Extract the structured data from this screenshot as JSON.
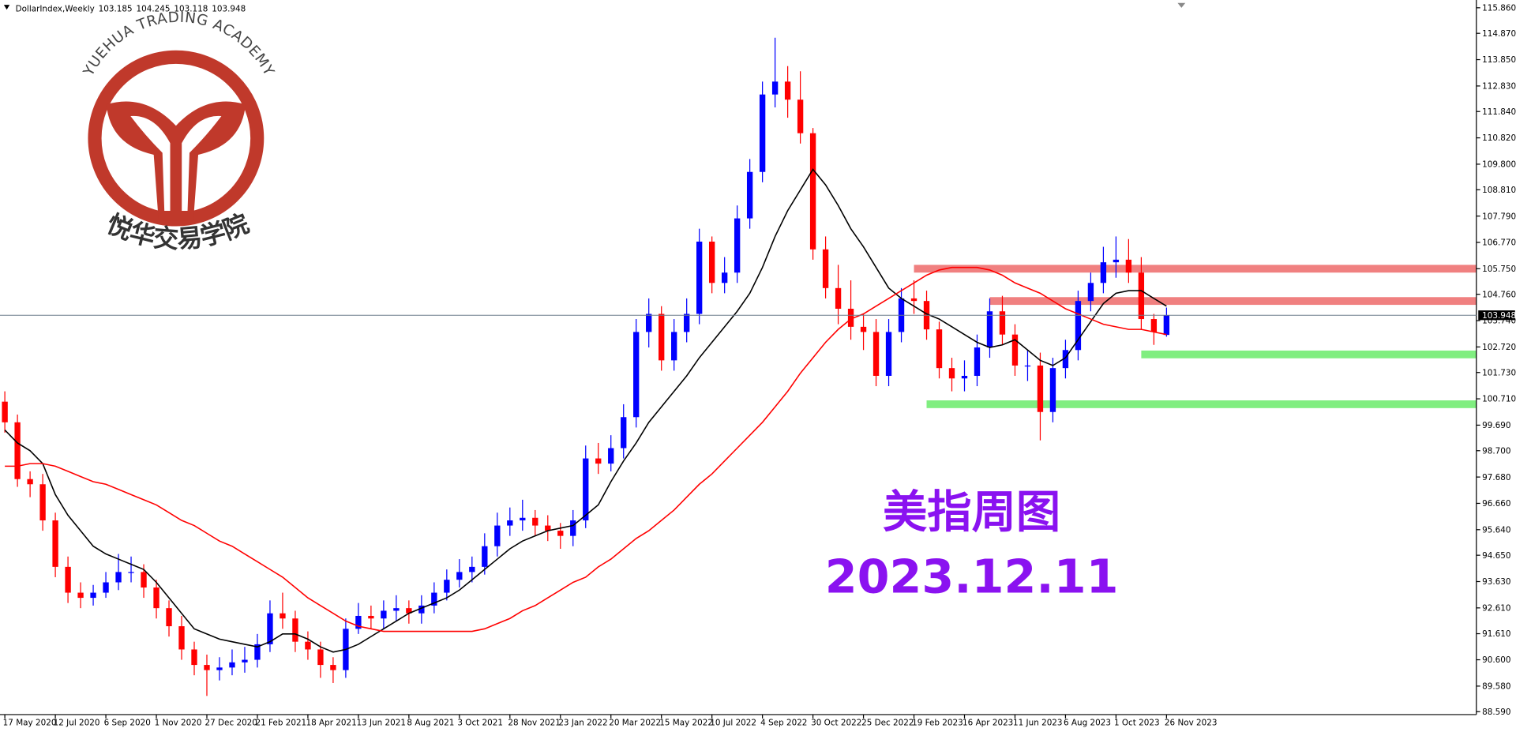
{
  "logo": {
    "arc_text": "YUEHUA TRADING ACADEMY",
    "cn_text": "悦华交易学院"
  },
  "chart_data": {
    "type": "candlestick",
    "symbol": "DollarIndex,Weekly",
    "categories": [
      "17 May 2020",
      null,
      null,
      null,
      "12 Jul 2020",
      null,
      null,
      null,
      "6 Sep 2020",
      null,
      null,
      null,
      "1 Nov 2020",
      null,
      null,
      null,
      "27 Dec 2020",
      null,
      null,
      null,
      "21 Feb 2021",
      null,
      null,
      null,
      "18 Apr 2021",
      null,
      null,
      null,
      "13 Jun 2021",
      null,
      null,
      null,
      "8 Aug 2021",
      null,
      null,
      null,
      "3 Oct 2021",
      null,
      null,
      null,
      "28 Nov 2021",
      null,
      null,
      null,
      "23 Jan 2022",
      null,
      null,
      null,
      "20 Mar 2022",
      null,
      null,
      null,
      "15 May 2022",
      null,
      null,
      null,
      "10 Jul 2022",
      null,
      null,
      null,
      "4 Sep 2022",
      null,
      null,
      null,
      "30 Oct 2022",
      null,
      null,
      null,
      "25 Dec 2022",
      null,
      null,
      null,
      "19 Feb 2023",
      null,
      null,
      null,
      "16 Apr 2023",
      null,
      null,
      null,
      "11 Jun 2023",
      null,
      null,
      null,
      "6 Aug 2023",
      null,
      null,
      null,
      "1 Oct 2023",
      null,
      null,
      null,
      "26 Nov 2023"
    ],
    "open": [
      100.6,
      99.8,
      97.6,
      97.4,
      96.0,
      94.2,
      93.2,
      93.0,
      93.2,
      93.6,
      94.0,
      94.0,
      93.4,
      92.6,
      91.9,
      91.0,
      90.4,
      90.2,
      90.3,
      90.5,
      90.6,
      91.2,
      92.4,
      92.2,
      91.3,
      91.0,
      90.4,
      90.2,
      91.8,
      92.3,
      92.2,
      92.5,
      92.6,
      92.4,
      92.7,
      93.2,
      93.7,
      94.0,
      94.2,
      95.0,
      95.8,
      96.0,
      96.1,
      95.8,
      95.6,
      95.4,
      96.0,
      98.4,
      98.2,
      98.8,
      100.0,
      103.3,
      104.0,
      102.2,
      103.3,
      104.0,
      106.8,
      105.2,
      105.6,
      107.7,
      109.5,
      112.5,
      113.0,
      112.3,
      111.0,
      106.5,
      105.0,
      104.2,
      103.5,
      103.3,
      101.6,
      103.3,
      104.6,
      104.5,
      103.4,
      101.9,
      101.5,
      101.6,
      102.7,
      104.1,
      103.2,
      102.0,
      102.0,
      100.2,
      101.9,
      102.6,
      104.5,
      105.2,
      106.0,
      106.1,
      105.6,
      103.8,
      103.185
    ],
    "high": [
      101.0,
      100.1,
      97.9,
      97.8,
      96.3,
      94.6,
      93.6,
      93.5,
      94.0,
      94.7,
      94.6,
      94.3,
      93.7,
      92.9,
      92.3,
      91.3,
      90.8,
      90.7,
      91.0,
      91.1,
      91.6,
      92.9,
      93.2,
      92.5,
      91.7,
      91.3,
      90.7,
      92.2,
      92.8,
      92.7,
      92.9,
      93.1,
      92.9,
      93.1,
      93.6,
      94.1,
      94.5,
      94.6,
      95.5,
      96.3,
      96.5,
      96.8,
      96.4,
      96.2,
      95.9,
      96.4,
      98.9,
      99.0,
      99.3,
      100.5,
      103.8,
      104.6,
      104.3,
      103.8,
      104.6,
      107.3,
      107.0,
      106.2,
      108.2,
      110.0,
      113.0,
      114.7,
      113.6,
      113.4,
      111.2,
      107.0,
      105.9,
      105.3,
      104.0,
      103.8,
      103.8,
      105.0,
      105.3,
      104.9,
      103.7,
      102.3,
      102.2,
      103.2,
      104.6,
      104.7,
      103.6,
      102.6,
      102.5,
      102.3,
      103.0,
      104.9,
      105.6,
      106.6,
      107.0,
      106.9,
      106.2,
      104.0,
      104.245
    ],
    "low": [
      99.4,
      97.3,
      96.9,
      95.6,
      93.8,
      92.8,
      92.6,
      92.7,
      93.0,
      93.3,
      93.6,
      93.0,
      92.2,
      91.5,
      90.6,
      90.0,
      89.2,
      89.8,
      90.0,
      90.1,
      90.3,
      90.9,
      91.8,
      90.9,
      90.6,
      89.9,
      89.7,
      89.9,
      91.6,
      91.8,
      91.8,
      92.1,
      92.0,
      92.0,
      92.4,
      92.9,
      93.4,
      93.6,
      93.9,
      94.6,
      95.4,
      95.6,
      95.4,
      95.2,
      94.9,
      95.0,
      95.7,
      97.8,
      97.9,
      98.4,
      99.6,
      102.7,
      101.8,
      101.8,
      102.9,
      103.6,
      104.8,
      104.8,
      105.2,
      107.3,
      109.1,
      112.0,
      111.6,
      110.6,
      106.1,
      104.6,
      103.6,
      103.0,
      102.6,
      101.2,
      101.2,
      102.9,
      104.0,
      103.0,
      101.5,
      101.0,
      101.0,
      101.2,
      102.3,
      102.8,
      101.6,
      101.4,
      99.1,
      99.8,
      101.5,
      102.2,
      104.1,
      104.8,
      105.4,
      105.2,
      103.4,
      102.8,
      103.118
    ],
    "close": [
      99.8,
      97.6,
      97.4,
      96.0,
      94.2,
      93.2,
      93.0,
      93.2,
      93.6,
      94.0,
      94.0,
      93.4,
      92.6,
      91.9,
      91.0,
      90.4,
      90.2,
      90.3,
      90.5,
      90.6,
      91.2,
      92.4,
      92.2,
      91.3,
      91.0,
      90.4,
      90.2,
      91.8,
      92.3,
      92.2,
      92.5,
      92.6,
      92.4,
      92.7,
      93.2,
      93.7,
      94.0,
      94.2,
      95.0,
      95.8,
      96.0,
      96.1,
      95.8,
      95.6,
      95.4,
      96.0,
      98.4,
      98.2,
      98.8,
      100.0,
      103.3,
      104.0,
      102.2,
      103.3,
      104.0,
      106.8,
      105.2,
      105.6,
      107.7,
      109.5,
      112.5,
      113.0,
      112.3,
      111.0,
      106.5,
      105.0,
      104.2,
      103.5,
      103.3,
      101.6,
      103.3,
      104.6,
      104.5,
      103.4,
      101.9,
      101.5,
      101.6,
      102.7,
      104.1,
      103.2,
      102.0,
      102.0,
      100.2,
      101.9,
      102.6,
      104.5,
      105.2,
      106.0,
      106.1,
      105.6,
      103.8,
      103.3,
      103.948
    ],
    "up_color": "#0000ff",
    "down_color": "#ff0000",
    "series": [
      {
        "color": "#000000",
        "values": [
          99.5,
          99.0,
          98.7,
          98.2,
          97.0,
          96.2,
          95.6,
          95.0,
          94.7,
          94.5,
          94.3,
          94.1,
          93.6,
          93.0,
          92.4,
          91.8,
          91.6,
          91.4,
          91.3,
          91.2,
          91.1,
          91.3,
          91.6,
          91.6,
          91.4,
          91.1,
          90.9,
          91.0,
          91.2,
          91.5,
          91.8,
          92.1,
          92.4,
          92.6,
          92.8,
          93.0,
          93.3,
          93.7,
          94.1,
          94.5,
          94.9,
          95.2,
          95.4,
          95.6,
          95.7,
          95.8,
          96.2,
          96.6,
          97.5,
          98.3,
          99.0,
          99.8,
          100.4,
          101.0,
          101.6,
          102.3,
          102.9,
          103.5,
          104.1,
          104.8,
          105.8,
          107.0,
          108.0,
          108.8,
          109.6,
          109.0,
          108.2,
          107.3,
          106.6,
          105.8,
          105.0,
          104.6,
          104.3,
          104.0,
          103.8,
          103.5,
          103.2,
          102.9,
          102.7,
          102.8,
          103.0,
          102.6,
          102.2,
          102.0,
          102.3,
          103.0,
          103.7,
          104.4,
          104.8,
          104.9,
          104.9,
          104.6,
          104.3
        ]
      },
      {
        "color": "#ff0000",
        "values": [
          98.1,
          98.1,
          98.2,
          98.2,
          98.1,
          97.9,
          97.7,
          97.5,
          97.4,
          97.2,
          97.0,
          96.8,
          96.6,
          96.3,
          96.0,
          95.8,
          95.5,
          95.2,
          95.0,
          94.7,
          94.4,
          94.1,
          93.8,
          93.4,
          93.0,
          92.7,
          92.4,
          92.1,
          91.9,
          91.8,
          91.7,
          91.7,
          91.7,
          91.7,
          91.7,
          91.7,
          91.7,
          91.7,
          91.8,
          92.0,
          92.2,
          92.5,
          92.7,
          93.0,
          93.3,
          93.6,
          93.8,
          94.2,
          94.5,
          94.9,
          95.3,
          95.6,
          96.0,
          96.4,
          96.9,
          97.4,
          97.8,
          98.3,
          98.8,
          99.3,
          99.8,
          100.4,
          101.0,
          101.7,
          102.3,
          102.9,
          103.4,
          103.8,
          104.0,
          104.3,
          104.6,
          104.9,
          105.2,
          105.5,
          105.7,
          105.8,
          105.8,
          105.8,
          105.7,
          105.5,
          105.2,
          105.0,
          104.8,
          104.5,
          104.2,
          104.0,
          103.8,
          103.6,
          103.5,
          103.4,
          103.4,
          103.3,
          103.2
        ]
      }
    ],
    "bands": [
      {
        "value": 105.75,
        "from": 72,
        "color": "#f08080"
      },
      {
        "value": 104.5,
        "from": 78,
        "color": "#f08080"
      },
      {
        "value": 102.43,
        "from": 90,
        "color": "#80ee80"
      },
      {
        "value": 100.5,
        "from": 73,
        "color": "#80ee80"
      }
    ],
    "annotations": [
      {
        "text": "美指周图",
        "color": "#8a12f0"
      },
      {
        "text": "2023.12.11",
        "color": "#8a12f0"
      }
    ],
    "ylim": [
      88.29,
      116.16
    ],
    "yticks": [
      {
        "value": 115.86,
        "label": "115.860"
      },
      {
        "value": 114.87,
        "label": "114.870"
      },
      {
        "value": 113.85,
        "label": "113.850"
      },
      {
        "value": 112.83,
        "label": "112.830"
      },
      {
        "value": 111.84,
        "label": "111.840"
      },
      {
        "value": 110.82,
        "label": "110.820"
      },
      {
        "value": 109.8,
        "label": "109.800"
      },
      {
        "value": 108.81,
        "label": "108.810"
      },
      {
        "value": 107.79,
        "label": "107.790"
      },
      {
        "value": 106.77,
        "label": "106.770"
      },
      {
        "value": 105.75,
        "label": "105.750"
      },
      {
        "value": 104.76,
        "label": "104.760"
      },
      {
        "value": 103.74,
        "label": "103.740"
      },
      {
        "value": 102.72,
        "label": "102.720"
      },
      {
        "value": 101.73,
        "label": "101.730"
      },
      {
        "value": 100.71,
        "label": "100.710"
      },
      {
        "value": 99.69,
        "label": "99.690"
      },
      {
        "value": 98.7,
        "label": "98.700"
      },
      {
        "value": 97.68,
        "label": "97.680"
      },
      {
        "value": 96.66,
        "label": "96.660"
      },
      {
        "value": 95.64,
        "label": "95.640"
      },
      {
        "value": 94.65,
        "label": "94.650"
      },
      {
        "value": 93.63,
        "label": "93.630"
      },
      {
        "value": 92.61,
        "label": "92.610"
      },
      {
        "value": 91.61,
        "label": "91.610"
      },
      {
        "value": 90.6,
        "label": "90.600"
      },
      {
        "value": 89.58,
        "label": "89.580"
      },
      {
        "value": 88.59,
        "label": "88.590"
      }
    ]
  }
}
